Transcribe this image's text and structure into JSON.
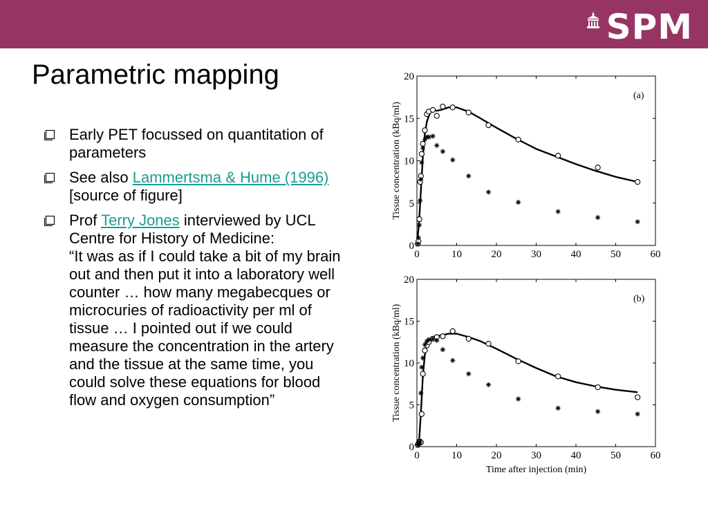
{
  "header": {
    "logo_text": "SPM",
    "logo_icon": "building-icon",
    "bar_color": "#963463"
  },
  "slide": {
    "title": "Parametric mapping",
    "bullet_icon": "checkbox-bullet-icon",
    "bullets": [
      {
        "text": "Early PET focussed on quantitation of parameters"
      },
      {
        "prefix": "See also ",
        "link": "Lammertsma & Hume (1996)",
        "suffix": " [source of figure]"
      },
      {
        "prefix": "Prof ",
        "link": "Terry Jones",
        "suffix": " interviewed by UCL Centre for History of Medicine:",
        "quote": "“It was as if I could take a bit of my brain out and then put it into a laboratory well counter … how many megabecques or microcuries of radioactivity per ml of tissue … I pointed out if we could measure the concentration in the artery and the tissue at the same time, you could solve these equations for blood flow and oxygen consumption”"
      }
    ],
    "link_color": "#1a9c93"
  },
  "chart_data": [
    {
      "type": "scatter",
      "label": "(a)",
      "xlabel": "",
      "ylabel": "Tissue concentration (kBq/ml)",
      "xlim": [
        0,
        60
      ],
      "ylim": [
        0,
        20
      ],
      "xticks": [
        "0",
        "10",
        "20",
        "30",
        "40",
        "50",
        "60"
      ],
      "yticks": [
        "0",
        "5",
        "10",
        "15",
        "20"
      ],
      "series": [
        {
          "marker": "circle",
          "x": [
            0.2,
            0.4,
            0.6,
            0.8,
            1.0,
            1.2,
            1.5,
            2.0,
            2.5,
            3.0,
            4.0,
            5.0,
            6.5,
            9.0,
            13.0,
            18.0,
            25.5,
            35.5,
            45.5,
            55.5
          ],
          "y": [
            0.2,
            0.5,
            3.1,
            7.5,
            8.2,
            10.8,
            12.0,
            13.6,
            15.5,
            15.8,
            16.0,
            15.3,
            16.4,
            16.3,
            15.7,
            14.2,
            12.5,
            10.6,
            9.2,
            7.5
          ]
        },
        {
          "marker": "star",
          "x": [
            0.2,
            0.4,
            0.6,
            0.8,
            1.0,
            1.2,
            1.5,
            2.0,
            2.5,
            3.0,
            4.0,
            5.0,
            6.5,
            9.0,
            13.0,
            18.0,
            25.5,
            35.5,
            45.5,
            55.5
          ],
          "y": [
            0.2,
            0.9,
            2.4,
            5.3,
            7.8,
            9.8,
            11.5,
            12.5,
            12.8,
            12.8,
            12.9,
            11.8,
            11.1,
            10.1,
            8.2,
            6.3,
            5.1,
            4.0,
            3.3,
            2.8
          ]
        },
        {
          "marker": "line",
          "x": [
            0,
            0.5,
            1.0,
            1.5,
            2.0,
            2.5,
            3.0,
            3.5,
            4.0,
            5,
            6,
            8,
            10,
            13,
            16,
            20,
            25,
            30,
            35,
            40,
            45,
            50,
            55.5
          ],
          "y": [
            0,
            2.5,
            6.5,
            10.5,
            13.2,
            14.6,
            15.3,
            15.8,
            16.0,
            15.9,
            16.0,
            16.3,
            16.3,
            15.8,
            15.0,
            13.9,
            12.6,
            11.4,
            10.5,
            9.6,
            8.8,
            8.1,
            7.5
          ]
        }
      ]
    },
    {
      "type": "scatter",
      "label": "(b)",
      "xlabel": "Time after injection (min)",
      "ylabel": "Tissue concentration (kBq/ml)",
      "xlim": [
        0,
        60
      ],
      "ylim": [
        0,
        20
      ],
      "xticks": [
        "0",
        "10",
        "20",
        "30",
        "40",
        "50",
        "60"
      ],
      "yticks": [
        "0",
        "5",
        "10",
        "15",
        "20"
      ],
      "series": [
        {
          "marker": "circle",
          "x": [
            0.2,
            0.4,
            0.6,
            0.8,
            1.0,
            1.2,
            1.5,
            2.0,
            2.5,
            3.0,
            4.0,
            5.0,
            6.5,
            9.0,
            13.0,
            18.0,
            25.5,
            35.5,
            45.5,
            55.5
          ],
          "y": [
            0.2,
            0.4,
            0.6,
            0.6,
            0.5,
            3.9,
            8.7,
            11.5,
            12.1,
            12.5,
            12.9,
            13.1,
            13.2,
            13.8,
            12.9,
            12.3,
            10.2,
            8.4,
            7.1,
            5.9
          ]
        },
        {
          "marker": "star",
          "x": [
            0.2,
            0.4,
            0.6,
            0.8,
            1.0,
            1.2,
            1.5,
            2.0,
            2.5,
            3.0,
            4.0,
            5.0,
            6.5,
            9.0,
            13.0,
            18.0,
            25.5,
            35.5,
            45.5,
            55.5
          ],
          "y": [
            0.2,
            0.3,
            0.5,
            0.5,
            6.4,
            9.5,
            10.6,
            12.2,
            12.6,
            12.8,
            12.9,
            12.7,
            11.6,
            10.3,
            8.7,
            7.4,
            5.7,
            4.6,
            4.2,
            3.9
          ]
        },
        {
          "marker": "line",
          "x": [
            0,
            0.5,
            1.0,
            1.5,
            2.0,
            2.5,
            3.0,
            4.0,
            5,
            6,
            8,
            10,
            13,
            16,
            20,
            25,
            30,
            35,
            40,
            45,
            50,
            55.5
          ],
          "y": [
            0,
            0.3,
            4.0,
            8.5,
            11.0,
            12.2,
            12.7,
            13.1,
            13.2,
            13.3,
            13.5,
            13.5,
            13.1,
            12.6,
            11.7,
            10.5,
            9.4,
            8.4,
            7.7,
            7.2,
            6.8,
            6.5
          ]
        }
      ]
    }
  ]
}
